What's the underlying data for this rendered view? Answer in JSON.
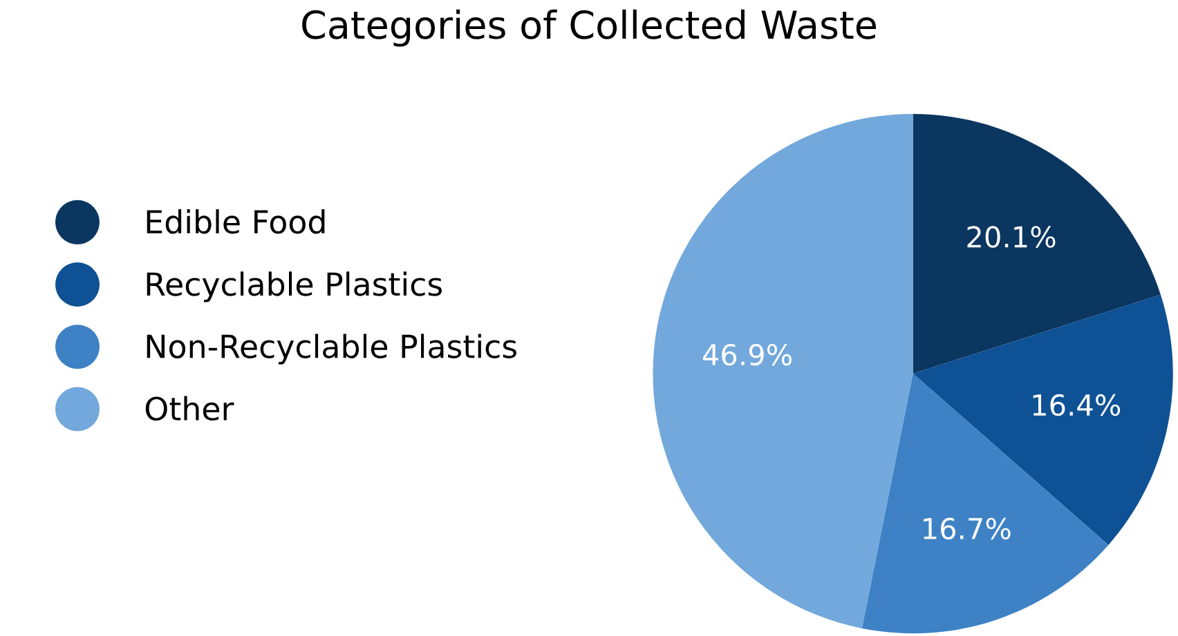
{
  "chart_data": {
    "type": "pie",
    "title": "Categories of Collected Waste",
    "categories": [
      "Edible Food",
      "Recyclable Plastics",
      "Non-Recyclable Plastics",
      "Other"
    ],
    "values": [
      20.1,
      16.4,
      16.7,
      46.9
    ],
    "colors": [
      "#0b3660",
      "#0f5195",
      "#3e82c5",
      "#72a8db"
    ],
    "value_labels": [
      "20.1%",
      "16.4%",
      "16.7%",
      "46.9%"
    ],
    "legend": "left"
  }
}
